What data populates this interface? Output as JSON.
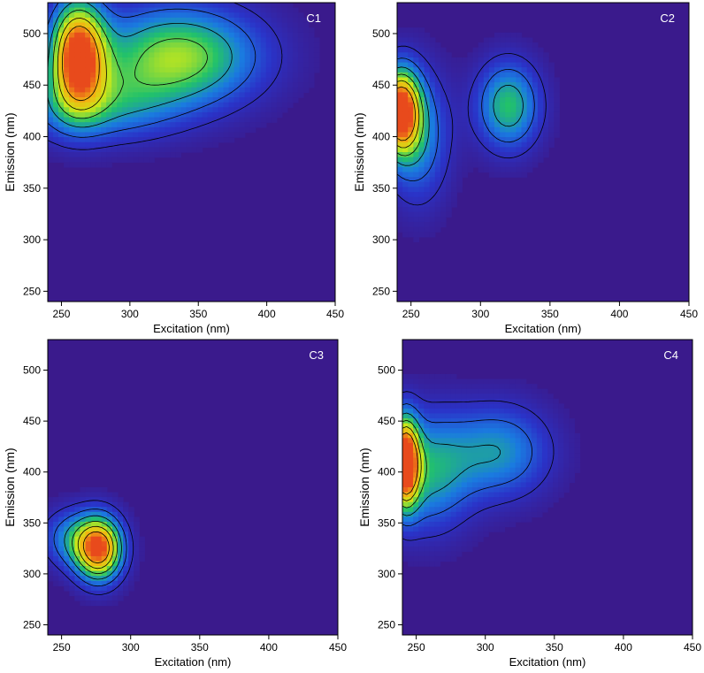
{
  "figure": {
    "colormap": [
      "#3a1a8c",
      "#2a33c8",
      "#1a7be0",
      "#22c26a",
      "#c8e81a",
      "#f2b412",
      "#e84a1c"
    ],
    "background_color": "#3a1a8c",
    "contour_color": "#000000"
  },
  "chart_data": [
    {
      "type": "heatmap",
      "subtype": "contour",
      "panel_label": "C1",
      "xlabel": "Excitation (nm)",
      "ylabel": "Emission (nm)",
      "xlim": [
        240,
        450
      ],
      "ylim": [
        240,
        530
      ],
      "xticks": [
        "250",
        "300",
        "350",
        "400",
        "450"
      ],
      "yticks": [
        "250",
        "300",
        "350",
        "400",
        "450",
        "500"
      ],
      "peaks": [
        {
          "ex": 262,
          "em": 480,
          "sx": 14,
          "sy": 36,
          "amp": 1.0
        },
        {
          "ex": 335,
          "em": 478,
          "sx": 42,
          "sy": 34,
          "amp": 0.62
        },
        {
          "ex": 275,
          "em": 430,
          "sx": 40,
          "sy": 25,
          "amp": 0.35
        }
      ],
      "contour_levels": [
        0.12,
        0.25,
        0.4,
        0.55,
        0.7,
        0.85
      ]
    },
    {
      "type": "heatmap",
      "subtype": "contour",
      "panel_label": "C2",
      "xlabel": "Excitation (nm)",
      "ylabel": "Emission (nm)",
      "xlim": [
        240,
        450
      ],
      "ylim": [
        240,
        530
      ],
      "xticks": [
        "250",
        "300",
        "350",
        "400",
        "450"
      ],
      "yticks": [
        "250",
        "300",
        "350",
        "400",
        "450",
        "500"
      ],
      "peaks": [
        {
          "ex": 242,
          "em": 425,
          "sx": 10,
          "sy": 28,
          "amp": 1.0
        },
        {
          "ex": 255,
          "em": 400,
          "sx": 16,
          "sy": 45,
          "amp": 0.35
        },
        {
          "ex": 320,
          "em": 430,
          "sx": 16,
          "sy": 30,
          "amp": 0.5
        }
      ],
      "contour_levels": [
        0.12,
        0.25,
        0.4,
        0.55,
        0.7,
        0.85
      ]
    },
    {
      "type": "heatmap",
      "subtype": "contour",
      "panel_label": "C3",
      "xlabel": "Excitation (nm)",
      "ylabel": "Emission (nm)",
      "xlim": [
        240,
        450
      ],
      "ylim": [
        240,
        530
      ],
      "xticks": [
        "250",
        "300",
        "350",
        "400",
        "450"
      ],
      "yticks": [
        "250",
        "300",
        "350",
        "400",
        "450",
        "500"
      ],
      "peaks": [
        {
          "ex": 277,
          "em": 325,
          "sx": 12,
          "sy": 22,
          "amp": 1.0
        },
        {
          "ex": 255,
          "em": 335,
          "sx": 14,
          "sy": 20,
          "amp": 0.3
        }
      ],
      "contour_levels": [
        0.12,
        0.25,
        0.4,
        0.55,
        0.7,
        0.85
      ]
    },
    {
      "type": "heatmap",
      "subtype": "contour",
      "panel_label": "C4",
      "xlabel": "Excitation (nm)",
      "ylabel": "Emission (nm)",
      "xlim": [
        240,
        450
      ],
      "ylim": [
        240,
        530
      ],
      "xticks": [
        "250",
        "300",
        "350",
        "400",
        "450"
      ],
      "yticks": [
        "250",
        "300",
        "350",
        "400",
        "450",
        "500"
      ],
      "peaks": [
        {
          "ex": 242,
          "em": 410,
          "sx": 7,
          "sy": 30,
          "amp": 1.0
        },
        {
          "ex": 258,
          "em": 400,
          "sx": 22,
          "sy": 40,
          "amp": 0.42
        },
        {
          "ex": 310,
          "em": 420,
          "sx": 26,
          "sy": 32,
          "amp": 0.38
        }
      ],
      "contour_levels": [
        0.12,
        0.25,
        0.4,
        0.55,
        0.7,
        0.85
      ]
    }
  ]
}
